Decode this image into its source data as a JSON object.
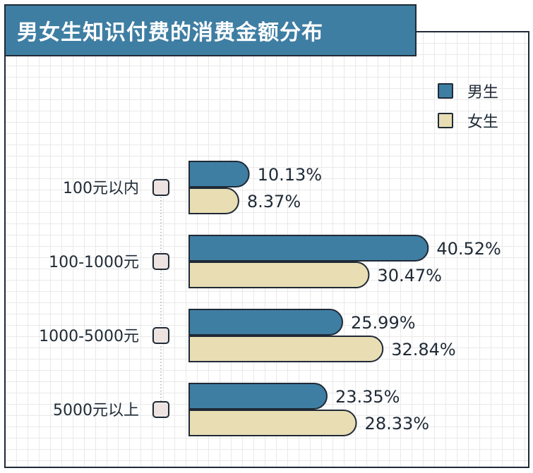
{
  "title": "男女生知识付费的消费金额分布",
  "colors": {
    "male": "#3f7ea3",
    "female": "#e8ddb3",
    "outline": "#1f2a36",
    "marker": "#ede4e2"
  },
  "legend": {
    "male": "男生",
    "female": "女生"
  },
  "chart_data": {
    "type": "bar",
    "orientation": "horizontal",
    "categories": [
      "100元以内",
      "100-1000元",
      "1000-5000元",
      "5000元以上"
    ],
    "series": [
      {
        "name": "男生",
        "values": [
          10.13,
          40.52,
          25.99,
          23.35
        ],
        "labels": [
          "10.13%",
          "40.52%",
          "25.99%",
          "23.35%"
        ]
      },
      {
        "name": "女生",
        "values": [
          8.37,
          30.47,
          32.84,
          28.33
        ],
        "labels": [
          "8.37%",
          "30.47%",
          "32.84%",
          "28.33%"
        ]
      }
    ],
    "value_unit": "%",
    "grid": true,
    "legend_position": "top-right"
  }
}
